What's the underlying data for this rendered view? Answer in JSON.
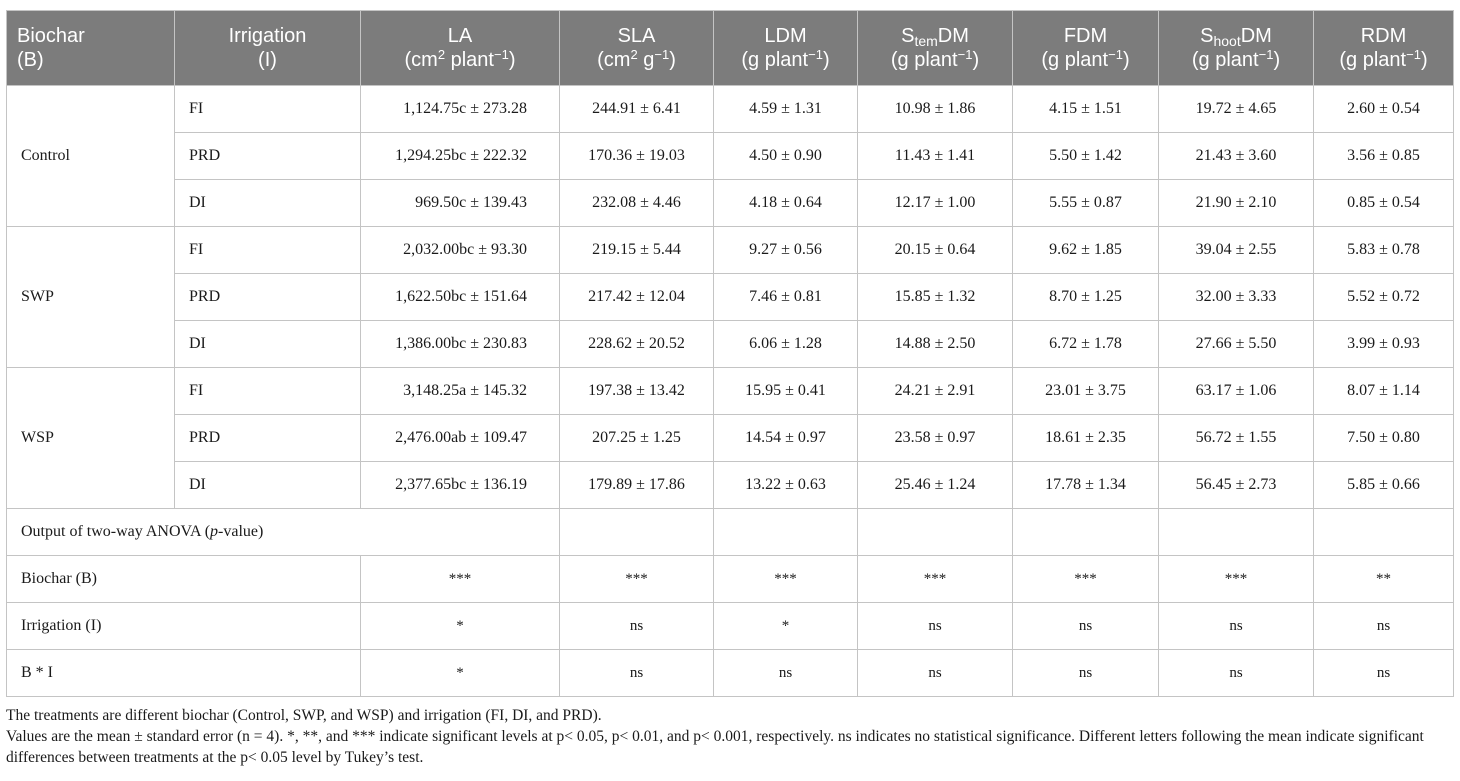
{
  "headers": {
    "biochar": [
      "Biochar",
      "(B)"
    ],
    "irrigation": [
      "Irrigation",
      "(I)"
    ],
    "la": {
      "name": "LA",
      "unit_a": "(cm",
      "unit_sup": "2",
      "unit_b": " plant",
      "unit_exp": "−1",
      "unit_c": ")"
    },
    "sla": {
      "name": "SLA",
      "unit_a": "(cm",
      "unit_sup": "2",
      "unit_b": " g",
      "unit_exp": "−1",
      "unit_c": ")"
    },
    "ldm": {
      "name": "LDM",
      "unit_a": "(g plant",
      "unit_exp": "−1",
      "unit_c": ")"
    },
    "stemdm": {
      "name_a": "S",
      "name_sub": "tem",
      "name_b": "DM",
      "unit_a": "(g plant",
      "unit_exp": "−1",
      "unit_c": ")"
    },
    "fdm": {
      "name": "FDM",
      "unit_a": "(g plant",
      "unit_exp": "−1",
      "unit_c": ")"
    },
    "shootdm": {
      "name_a": "S",
      "name_sub": "hoot",
      "name_b": "DM",
      "unit_a": "(g plant",
      "unit_exp": "−1",
      "unit_c": ")"
    },
    "rdm": {
      "name": "RDM",
      "unit_a": "(g plant",
      "unit_exp": "−1",
      "unit_c": ")"
    }
  },
  "groups": [
    {
      "biochar": "Control",
      "rows": [
        {
          "irrigation": "FI",
          "la": "1,124.75c ± 273.28",
          "sla": "244.91 ± 6.41",
          "ldm": "4.59 ± 1.31",
          "stemdm": "10.98 ± 1.86",
          "fdm": "4.15 ± 1.51",
          "shootdm": "19.72 ± 4.65",
          "rdm": "2.60 ± 0.54"
        },
        {
          "irrigation": "PRD",
          "la": "1,294.25bc ± 222.32",
          "sla": "170.36 ± 19.03",
          "ldm": "4.50 ± 0.90",
          "stemdm": "11.43 ± 1.41",
          "fdm": "5.50 ± 1.42",
          "shootdm": "21.43 ± 3.60",
          "rdm": "3.56 ± 0.85"
        },
        {
          "irrigation": "DI",
          "la": "969.50c ± 139.43",
          "sla": "232.08 ± 4.46",
          "ldm": "4.18 ± 0.64",
          "stemdm": "12.17 ± 1.00",
          "fdm": "5.55 ± 0.87",
          "shootdm": "21.90 ± 2.10",
          "rdm": "0.85 ± 0.54"
        }
      ]
    },
    {
      "biochar": "SWP",
      "rows": [
        {
          "irrigation": "FI",
          "la": "2,032.00bc ± 93.30",
          "sla": "219.15 ± 5.44",
          "ldm": "9.27 ± 0.56",
          "stemdm": "20.15 ± 0.64",
          "fdm": "9.62 ± 1.85",
          "shootdm": "39.04 ± 2.55",
          "rdm": "5.83 ± 0.78"
        },
        {
          "irrigation": "PRD",
          "la": "1,622.50bc ± 151.64",
          "sla": "217.42 ± 12.04",
          "ldm": "7.46 ± 0.81",
          "stemdm": "15.85 ± 1.32",
          "fdm": "8.70 ± 1.25",
          "shootdm": "32.00 ± 3.33",
          "rdm": "5.52 ± 0.72"
        },
        {
          "irrigation": "DI",
          "la": "1,386.00bc ± 230.83",
          "sla": "228.62 ± 20.52",
          "ldm": "6.06 ± 1.28",
          "stemdm": "14.88 ± 2.50",
          "fdm": "6.72 ± 1.78",
          "shootdm": "27.66 ± 5.50",
          "rdm": "3.99 ± 0.93"
        }
      ]
    },
    {
      "biochar": "WSP",
      "rows": [
        {
          "irrigation": "FI",
          "la": "3,148.25a ± 145.32",
          "sla": "197.38 ± 13.42",
          "ldm": "15.95 ± 0.41",
          "stemdm": "24.21 ± 2.91",
          "fdm": "23.01 ± 3.75",
          "shootdm": "63.17 ± 1.06",
          "rdm": "8.07 ± 1.14"
        },
        {
          "irrigation": "PRD",
          "la": "2,476.00ab ± 109.47",
          "sla": "207.25 ± 1.25",
          "ldm": "14.54 ± 0.97",
          "stemdm": "23.58 ± 0.97",
          "fdm": "18.61 ± 2.35",
          "shootdm": "56.72 ± 1.55",
          "rdm": "7.50 ± 0.80"
        },
        {
          "irrigation": "DI",
          "la": "2,377.65bc ± 136.19",
          "sla": "179.89 ± 17.86",
          "ldm": "13.22 ± 0.63",
          "stemdm": "25.46 ± 1.24",
          "fdm": "17.78 ± 1.34",
          "shootdm": "56.45 ± 2.73",
          "rdm": "5.85 ± 0.66"
        }
      ]
    }
  ],
  "anova": {
    "title_a": "Output of two-way ANOVA (",
    "title_italic": "p",
    "title_b": "-value)",
    "rows": [
      {
        "label": "Biochar (B)",
        "values": [
          "***",
          "***",
          "***",
          "***",
          "***",
          "***",
          "**"
        ]
      },
      {
        "label": "Irrigation (I)",
        "values": [
          "*",
          "ns",
          "*",
          "ns",
          "ns",
          "ns",
          "ns"
        ]
      },
      {
        "label": "B * I",
        "values": [
          "*",
          "ns",
          "ns",
          "ns",
          "ns",
          "ns",
          "ns"
        ]
      }
    ]
  },
  "notes": [
    "The treatments are different biochar (Control, SWP, and WSP) and irrigation (FI, DI, and PRD).",
    "Values are the mean ± standard error (n = 4). *, **, and *** indicate significant levels at p< 0.05, p< 0.01, and p< 0.001, respectively. ns indicates no statistical significance. Different letters following the mean indicate significant differences between treatments at the p< 0.05 level by Tukey’s test."
  ]
}
